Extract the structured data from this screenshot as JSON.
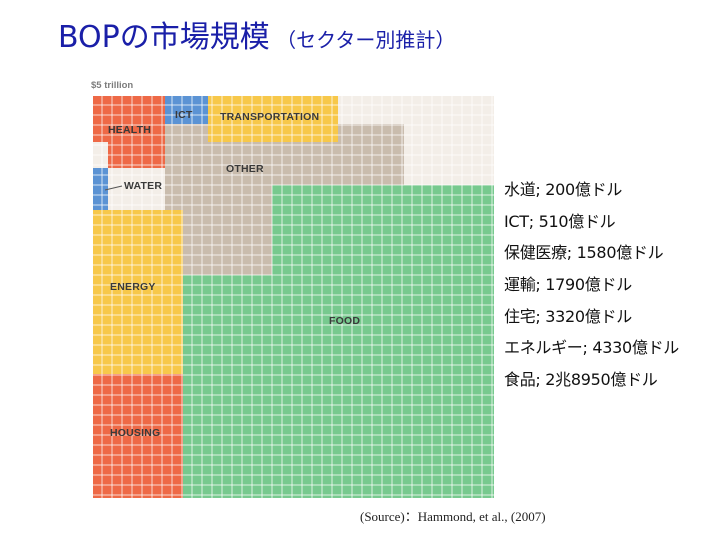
{
  "title": {
    "main": "BOPの市場規模",
    "sub": " （セクター別推計）"
  },
  "chart_data": {
    "type": "treemap",
    "total_label": "$5 trillion",
    "unit": "億ドル",
    "sectors": [
      {
        "key": "food",
        "label": "FOOD",
        "value": 28950,
        "color": "#77c98e"
      },
      {
        "key": "other",
        "label": "OTHER",
        "value": null,
        "color": "#c9bcad"
      },
      {
        "key": "energy",
        "label": "ENERGY",
        "value": 4330,
        "color": "#f7c84a"
      },
      {
        "key": "housing",
        "label": "HOUSING",
        "value": 3320,
        "color": "#ee6946"
      },
      {
        "key": "transportation",
        "label": "TRANSPORTATION",
        "value": 1790,
        "color": "#f7c84a"
      },
      {
        "key": "health",
        "label": "HEALTH",
        "value": 1580,
        "color": "#ee6946"
      },
      {
        "key": "ict",
        "label": "ICT",
        "value": 510,
        "color": "#5b93d4"
      },
      {
        "key": "water",
        "label": "WATER",
        "value": 200,
        "color": "#5b93d4"
      }
    ]
  },
  "legend": [
    "水道; 200億ドル",
    "ICT; 510億ドル",
    "保健医療; 1580億ドル",
    "運輸; 1790億ドル",
    "住宅; 3320億ドル",
    "エネルギー; 4330億ドル",
    "食品; 2兆8950億ドル"
  ],
  "source": "(Source)：Hammond, et al., (2007)"
}
